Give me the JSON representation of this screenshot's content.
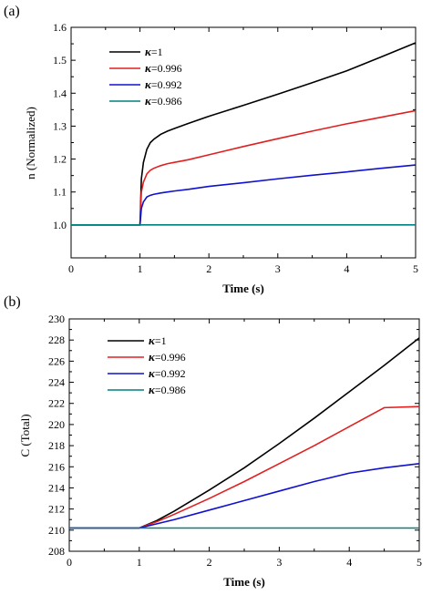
{
  "chart_data": [
    {
      "type": "line",
      "panel_label": "(a)",
      "xlabel": "Time (s)",
      "ylabel": "n (Normalized)",
      "xlim": [
        0,
        5
      ],
      "ylim": [
        0.9,
        1.6
      ],
      "xticks": [
        "0",
        "1",
        "2",
        "3",
        "4",
        "5"
      ],
      "yticks": [
        "1.0",
        "1.1",
        "1.2",
        "1.3",
        "1.4",
        "1.5",
        "1.6"
      ],
      "legend_position": "top-left",
      "grid": false,
      "x": [
        0,
        0.5,
        1.0,
        1.02,
        1.05,
        1.1,
        1.15,
        1.2,
        1.3,
        1.4,
        1.5,
        1.7,
        2.0,
        2.5,
        3.0,
        3.5,
        4.0,
        4.5,
        5.0
      ],
      "series": [
        {
          "name_symbol": "κ",
          "name_value": "=1",
          "color": "#000000",
          "values": [
            1.0,
            1.0,
            1.0,
            1.14,
            1.19,
            1.23,
            1.25,
            1.26,
            1.275,
            1.285,
            1.293,
            1.308,
            1.33,
            1.363,
            1.397,
            1.432,
            1.468,
            1.51,
            1.553
          ]
        },
        {
          "name_symbol": "κ",
          "name_value": "=0.996",
          "color": "#e02020",
          "values": [
            1.0,
            1.0,
            1.0,
            1.1,
            1.13,
            1.155,
            1.166,
            1.172,
            1.18,
            1.186,
            1.19,
            1.198,
            1.213,
            1.238,
            1.262,
            1.285,
            1.307,
            1.327,
            1.347
          ]
        },
        {
          "name_symbol": "κ",
          "name_value": "=0.992",
          "color": "#1010d0",
          "values": [
            1.0,
            1.0,
            1.0,
            1.05,
            1.07,
            1.085,
            1.09,
            1.093,
            1.097,
            1.1,
            1.103,
            1.108,
            1.117,
            1.128,
            1.14,
            1.151,
            1.161,
            1.172,
            1.182
          ]
        },
        {
          "name_symbol": "κ",
          "name_value": "=0.986",
          "color": "#008080",
          "values": [
            1.0,
            1.0,
            1.0,
            1.0,
            1.0,
            1.0,
            1.0,
            1.0,
            1.0,
            1.0,
            1.0,
            1.0,
            1.0,
            1.0,
            1.0,
            1.0,
            1.0,
            1.0,
            1.0
          ]
        }
      ]
    },
    {
      "type": "line",
      "panel_label": "(b)",
      "xlabel": "Time (s)",
      "ylabel": "C (Total)",
      "xlim": [
        0,
        5
      ],
      "ylim": [
        208,
        230
      ],
      "xticks": [
        "0",
        "1",
        "2",
        "3",
        "4",
        "5"
      ],
      "yticks": [
        "208",
        "210",
        "212",
        "214",
        "216",
        "218",
        "220",
        "222",
        "224",
        "226",
        "228",
        "230"
      ],
      "legend_position": "top-left",
      "grid": false,
      "x": [
        0,
        0.5,
        1.0,
        1.25,
        1.5,
        2.0,
        2.5,
        3.0,
        3.5,
        4.0,
        4.5,
        5.0
      ],
      "series": [
        {
          "name_symbol": "κ",
          "name_value": "=1",
          "color": "#000000",
          "values": [
            210.2,
            210.2,
            210.2,
            210.9,
            211.8,
            213.8,
            215.9,
            218.2,
            220.6,
            223.1,
            225.6,
            228.2
          ]
        },
        {
          "name_symbol": "κ",
          "name_value": "=0.996",
          "color": "#e02020",
          "values": [
            210.2,
            210.2,
            210.2,
            210.8,
            211.5,
            213.0,
            214.6,
            216.3,
            218.0,
            219.8,
            221.6,
            221.7
          ]
        },
        {
          "name_symbol": "κ",
          "name_value": "=0.992",
          "color": "#1010d0",
          "values": [
            210.2,
            210.2,
            210.2,
            210.6,
            211.0,
            211.9,
            212.8,
            213.7,
            214.6,
            215.4,
            215.9,
            216.3
          ]
        },
        {
          "name_symbol": "κ",
          "name_value": "=0.986",
          "color": "#008080",
          "values": [
            210.2,
            210.2,
            210.2,
            210.2,
            210.2,
            210.2,
            210.2,
            210.2,
            210.2,
            210.2,
            210.2,
            210.2
          ]
        }
      ]
    }
  ]
}
